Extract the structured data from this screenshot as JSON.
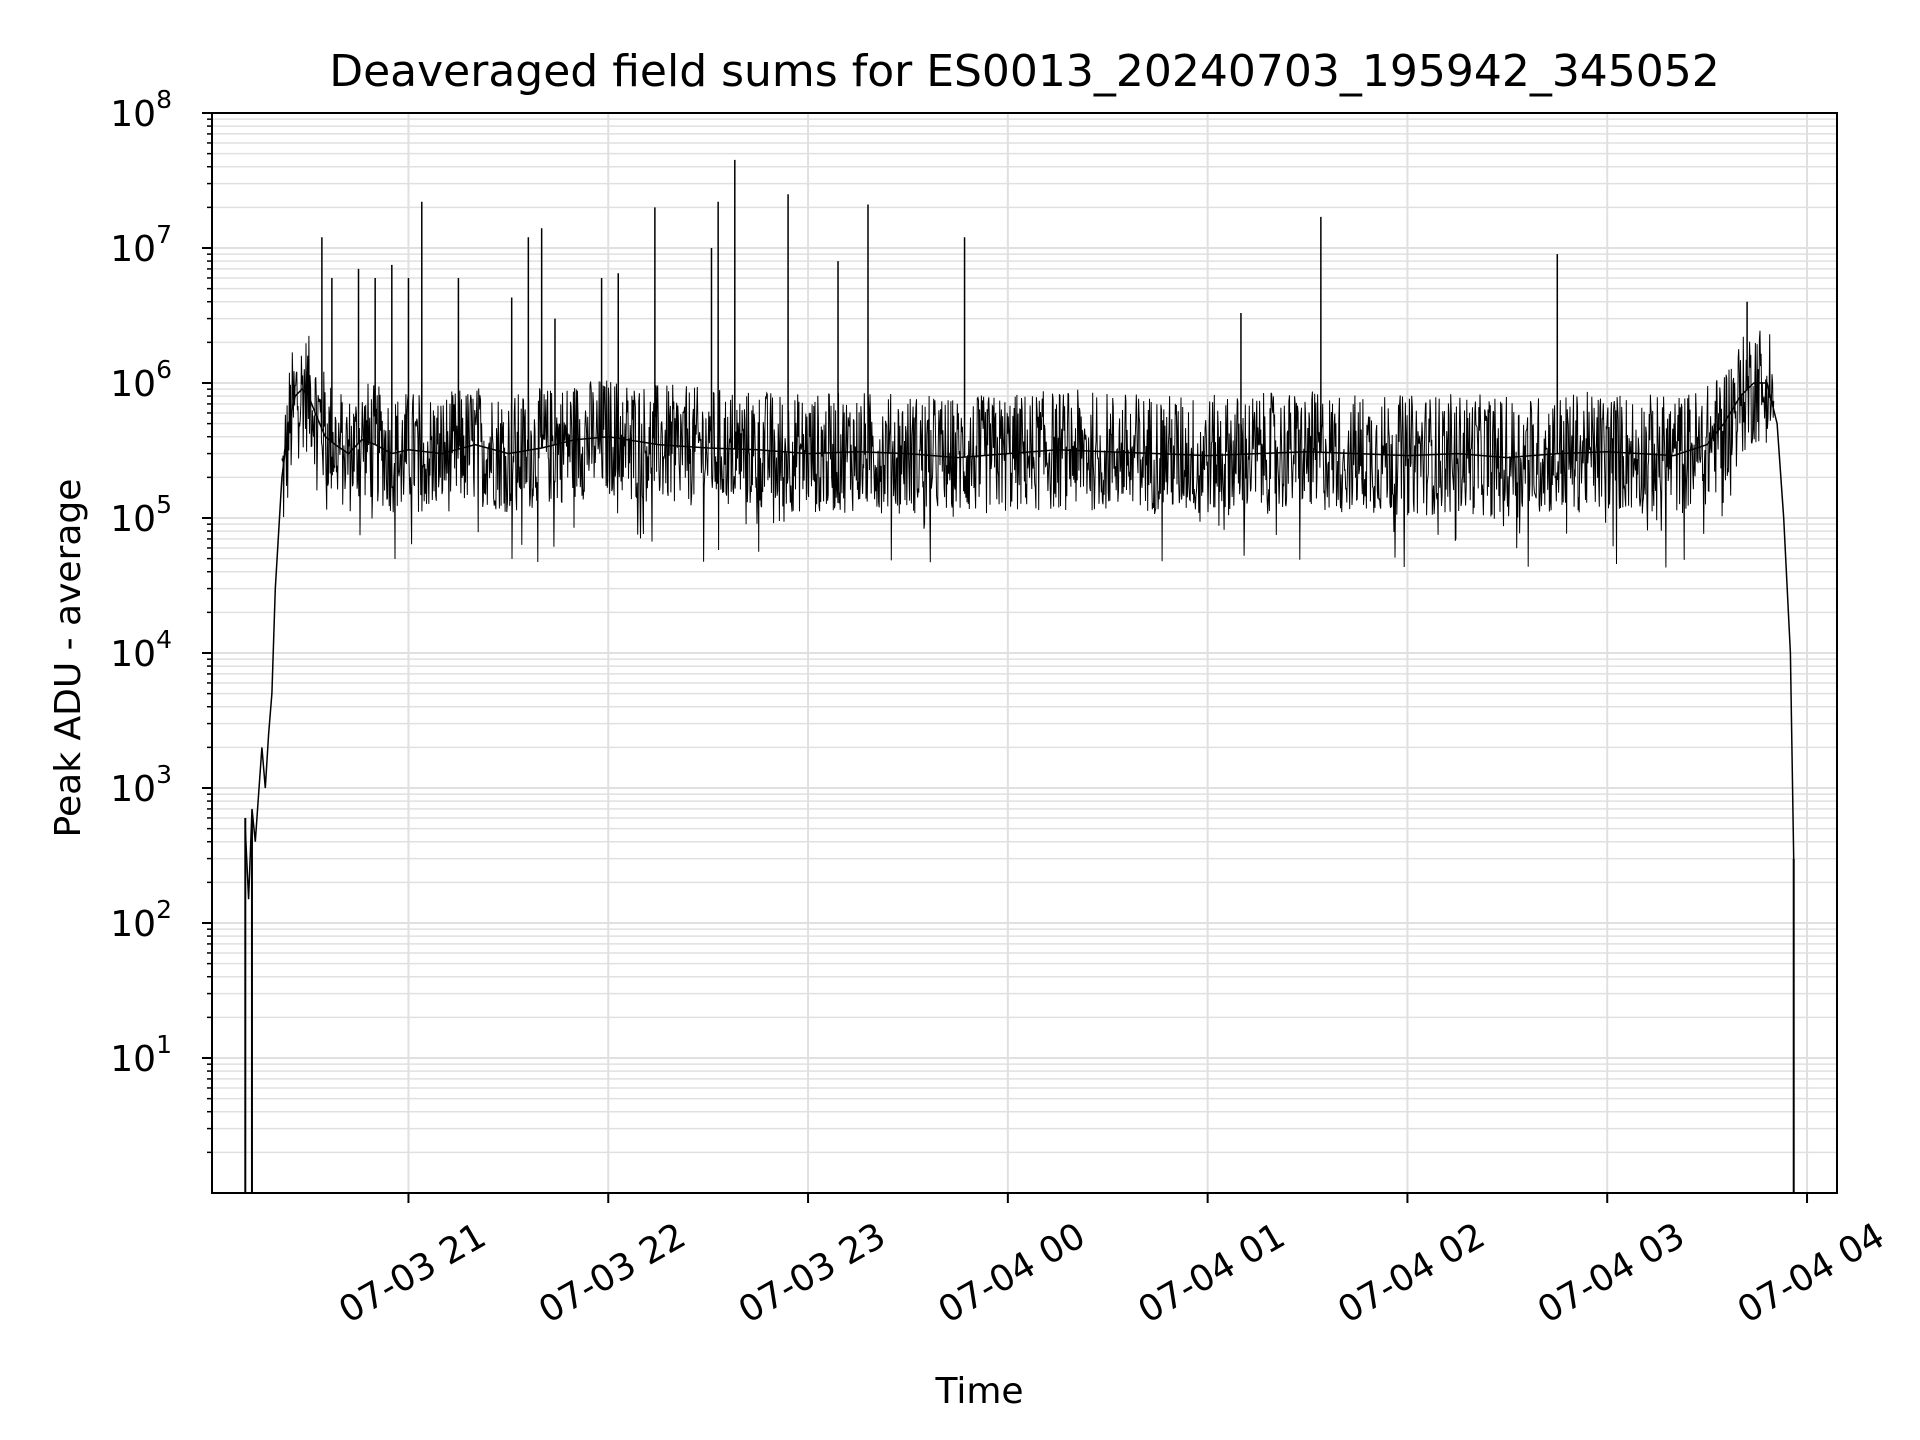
{
  "chart_data": {
    "type": "line",
    "title": "Deaveraged field sums for ES0013_20240703_195942_345052",
    "xlabel": "Time",
    "ylabel": "Peak ADU - average",
    "yscale": "log",
    "ylim": [
      1,
      100000000
    ],
    "xlim": [
      "2024-07-03 20:01",
      "2024-07-04 04:09"
    ],
    "grid": "on (major and minor)",
    "colors": {
      "line": "#000000",
      "grid": "#e0e0e0",
      "axes": "#000000"
    },
    "y_ticks": [
      {
        "value": 10,
        "base": "10",
        "exp": "1"
      },
      {
        "value": 100,
        "base": "10",
        "exp": "2"
      },
      {
        "value": 1000,
        "base": "10",
        "exp": "3"
      },
      {
        "value": 10000,
        "base": "10",
        "exp": "4"
      },
      {
        "value": 100000,
        "base": "10",
        "exp": "5"
      },
      {
        "value": 1000000,
        "base": "10",
        "exp": "6"
      },
      {
        "value": 10000000,
        "base": "10",
        "exp": "7"
      },
      {
        "value": 100000000,
        "base": "10",
        "exp": "8"
      }
    ],
    "x_ticks": [
      {
        "time": "2024-07-03 21:00",
        "label": "07-03 21"
      },
      {
        "time": "2024-07-03 22:00",
        "label": "07-03 22"
      },
      {
        "time": "2024-07-03 23:00",
        "label": "07-03 23"
      },
      {
        "time": "2024-07-04 00:00",
        "label": "07-04 00"
      },
      {
        "time": "2024-07-04 01:00",
        "label": "07-04 01"
      },
      {
        "time": "2024-07-04 02:00",
        "label": "07-04 02"
      },
      {
        "time": "2024-07-04 03:00",
        "label": "07-04 03"
      },
      {
        "time": "2024-07-04 04:00",
        "label": "07-04 04"
      }
    ],
    "series": [
      {
        "x": [
          "2024-07-03 20:11",
          "2024-07-03 20:12",
          "2024-07-03 20:13",
          "2024-07-03 20:14",
          "2024-07-03 20:15",
          "2024-07-03 20:16",
          "2024-07-03 20:17",
          "2024-07-03 20:18",
          "2024-07-03 20:19",
          "2024-07-03 20:20",
          "2024-07-03 20:22",
          "2024-07-03 20:24",
          "2024-07-03 20:26",
          "2024-07-03 20:28",
          "2024-07-03 20:30",
          "2024-07-03 20:32",
          "2024-07-03 20:35",
          "2024-07-03 20:38",
          "2024-07-03 20:42",
          "2024-07-03 20:46",
          "2024-07-03 20:50",
          "2024-07-03 20:55",
          "2024-07-03 21:00",
          "2024-07-03 21:10",
          "2024-07-03 21:20",
          "2024-07-03 21:30",
          "2024-07-03 21:40",
          "2024-07-03 21:50",
          "2024-07-03 22:00",
          "2024-07-03 22:15",
          "2024-07-03 22:30",
          "2024-07-03 22:45",
          "2024-07-03 23:00",
          "2024-07-03 23:15",
          "2024-07-03 23:30",
          "2024-07-03 23:45",
          "2024-07-04 00:00",
          "2024-07-04 00:15",
          "2024-07-04 00:30",
          "2024-07-04 00:45",
          "2024-07-04 01:00",
          "2024-07-04 01:15",
          "2024-07-04 01:30",
          "2024-07-04 01:45",
          "2024-07-04 02:00",
          "2024-07-04 02:15",
          "2024-07-04 02:30",
          "2024-07-04 02:45",
          "2024-07-04 03:00",
          "2024-07-04 03:10",
          "2024-07-04 03:20",
          "2024-07-04 03:30",
          "2024-07-04 03:35",
          "2024-07-04 03:40",
          "2024-07-04 03:44",
          "2024-07-04 03:48",
          "2024-07-04 03:51",
          "2024-07-04 03:53",
          "2024-07-04 03:55",
          "2024-07-04 03:56"
        ],
        "y": [
          500,
          150,
          700,
          400,
          900,
          2000,
          1000,
          2500,
          5000,
          30000,
          200000,
          500000,
          800000,
          900000,
          800000,
          600000,
          400000,
          350000,
          300000,
          380000,
          350000,
          300000,
          320000,
          300000,
          350000,
          300000,
          330000,
          380000,
          400000,
          350000,
          330000,
          320000,
          300000,
          310000,
          300000,
          280000,
          300000,
          320000,
          310000,
          300000,
          290000,
          300000,
          310000,
          300000,
          290000,
          300000,
          280000,
          300000,
          310000,
          300000,
          290000,
          350000,
          500000,
          800000,
          1000000,
          1000000,
          500000,
          100000,
          10000,
          300
        ]
      }
    ],
    "annotations": [
      {
        "x": "2024-07-03 20:11",
        "y": 550,
        "note": ""
      }
    ],
    "spikes": [
      {
        "x": "2024-07-03 20:34",
        "y": 12000000
      },
      {
        "x": "2024-07-03 20:37",
        "y": 6000000
      },
      {
        "x": "2024-07-03 20:45",
        "y": 7000000
      },
      {
        "x": "2024-07-03 20:50",
        "y": 6000000
      },
      {
        "x": "2024-07-03 20:55",
        "y": 7500000
      },
      {
        "x": "2024-07-03 21:00",
        "y": 6000000
      },
      {
        "x": "2024-07-03 21:04",
        "y": 22000000
      },
      {
        "x": "2024-07-03 21:15",
        "y": 6000000
      },
      {
        "x": "2024-07-03 21:31",
        "y": 4300000
      },
      {
        "x": "2024-07-03 21:36",
        "y": 12000000
      },
      {
        "x": "2024-07-03 21:40",
        "y": 14000000
      },
      {
        "x": "2024-07-03 21:44",
        "y": 3000000
      },
      {
        "x": "2024-07-03 21:58",
        "y": 6000000
      },
      {
        "x": "2024-07-03 22:03",
        "y": 6500000
      },
      {
        "x": "2024-07-03 22:14",
        "y": 20000000
      },
      {
        "x": "2024-07-03 22:31",
        "y": 10000000
      },
      {
        "x": "2024-07-03 22:33",
        "y": 22000000
      },
      {
        "x": "2024-07-03 22:38",
        "y": 45000000
      },
      {
        "x": "2024-07-03 22:54",
        "y": 25000000
      },
      {
        "x": "2024-07-03 23:09",
        "y": 8000000
      },
      {
        "x": "2024-07-03 23:18",
        "y": 21000000
      },
      {
        "x": "2024-07-03 23:47",
        "y": 12000000
      },
      {
        "x": "2024-07-04 01:10",
        "y": 3300000
      },
      {
        "x": "2024-07-04 01:34",
        "y": 17000000
      },
      {
        "x": "2024-07-04 02:45",
        "y": 9000000
      },
      {
        "x": "2024-07-04 03:42",
        "y": 4000000
      }
    ]
  }
}
